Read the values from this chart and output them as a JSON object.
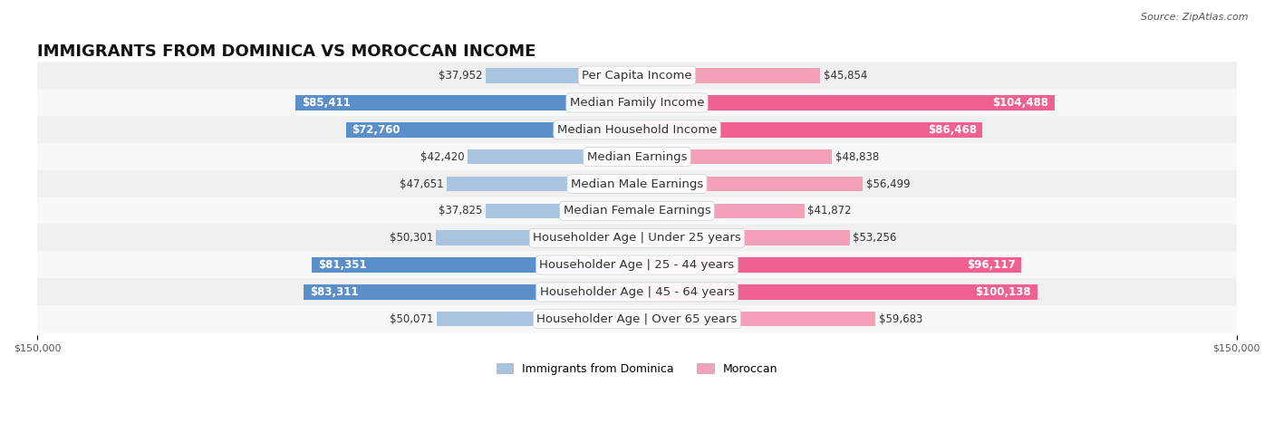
{
  "title": "IMMIGRANTS FROM DOMINICA VS MOROCCAN INCOME",
  "source": "Source: ZipAtlas.com",
  "categories": [
    "Per Capita Income",
    "Median Family Income",
    "Median Household Income",
    "Median Earnings",
    "Median Male Earnings",
    "Median Female Earnings",
    "Householder Age | Under 25 years",
    "Householder Age | 25 - 44 years",
    "Householder Age | 45 - 64 years",
    "Householder Age | Over 65 years"
  ],
  "dominica_values": [
    37952,
    85411,
    72760,
    42420,
    47651,
    37825,
    50301,
    81351,
    83311,
    50071
  ],
  "moroccan_values": [
    45854,
    104488,
    86468,
    48838,
    56499,
    41872,
    53256,
    96117,
    100138,
    59683
  ],
  "dominica_color_light": "#a8c4e0",
  "dominica_color_dark": "#5b8fc9",
  "moroccan_color_light": "#f4a0b8",
  "moroccan_color_dark": "#f06090",
  "dominica_label": "Immigrants from Dominica",
  "moroccan_label": "Moroccan",
  "xlim": 150000,
  "bar_height": 0.55,
  "row_bg_color": "#f0f0f0",
  "row_bg_color_alt": "#f8f8f8",
  "label_fontsize": 9.5,
  "value_fontsize": 8.5,
  "title_fontsize": 13,
  "axis_label_fontsize": 8
}
